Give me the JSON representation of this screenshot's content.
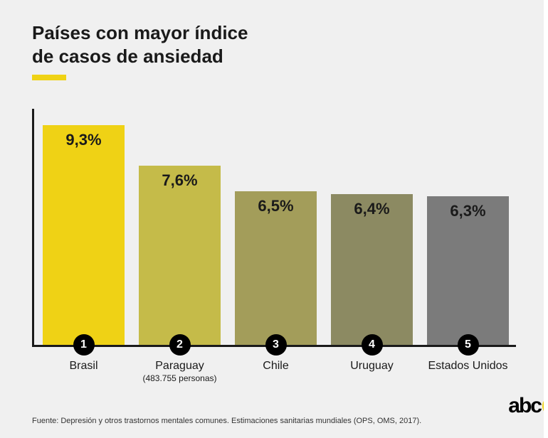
{
  "background_color": "#f0f0f0",
  "title": {
    "line1": "Países con mayor índice",
    "line2": "de casos de ansiedad",
    "underline_color": "#efd215",
    "font_size": 26,
    "color": "#1a1a1a"
  },
  "chart": {
    "type": "bar",
    "max_value": 10.0,
    "axis_color": "#1a1a1a",
    "value_label_fontsize": 22,
    "bars": [
      {
        "rank": "1",
        "country": "Brasil",
        "sublabel": "",
        "value": 9.3,
        "value_label": "9,3%",
        "color": "#efd215"
      },
      {
        "rank": "2",
        "country": "Paraguay",
        "sublabel": "(483.755 personas)",
        "value": 7.6,
        "value_label": "7,6%",
        "color": "#c5bb49"
      },
      {
        "rank": "3",
        "country": "Chile",
        "sublabel": "",
        "value": 6.5,
        "value_label": "6,5%",
        "color": "#a39d5a"
      },
      {
        "rank": "4",
        "country": "Uruguay",
        "sublabel": "",
        "value": 6.4,
        "value_label": "6,4%",
        "color": "#8c8a62"
      },
      {
        "rank": "5",
        "country": "Estados Unidos",
        "sublabel": "",
        "value": 6.3,
        "value_label": "6,3%",
        "color": "#7b7b7b"
      }
    ],
    "rank_badge": {
      "bg": "#000000",
      "fg": "#ffffff"
    },
    "country_fontsize": 16
  },
  "source": "Fuente: Depresión y otros trastornos mentales comunes. Estimaciones sanitarias mundiales (OPS, OMS, 2017).",
  "logo": {
    "text": "abc",
    "dot_color": "#efd215"
  }
}
